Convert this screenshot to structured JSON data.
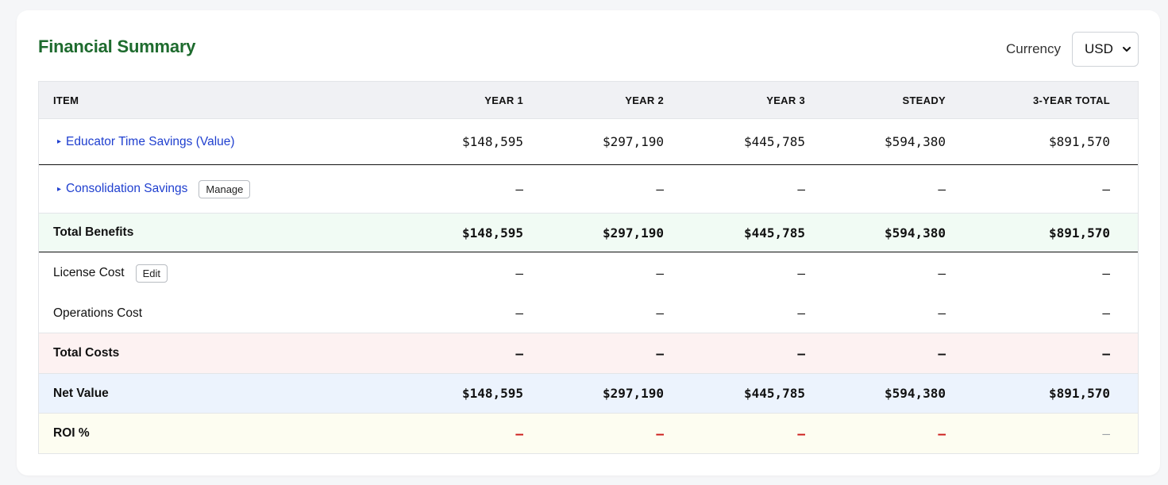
{
  "header": {
    "title": "Financial Summary",
    "currency_label": "Currency",
    "currency_value": "USD",
    "chevron_icon": "chevron-down-icon"
  },
  "table": {
    "columns": [
      "ITEM",
      "YEAR 1",
      "YEAR 2",
      "YEAR 3",
      "STEADY",
      "3-YEAR TOTAL"
    ],
    "rows": [
      {
        "label": "Educator Time Savings (Value)",
        "toggle": "▸",
        "values": [
          "$148,595",
          "$297,190",
          "$445,785",
          "$594,380",
          "$891,570"
        ]
      },
      {
        "label": "Consolidation Savings",
        "toggle": "▸",
        "button": "Manage",
        "values": [
          "–",
          "–",
          "–",
          "–",
          "–"
        ]
      },
      {
        "label": "Total Benefits",
        "values": [
          "$148,595",
          "$297,190",
          "$445,785",
          "$594,380",
          "$891,570"
        ]
      },
      {
        "label": "License Cost",
        "button": "Edit",
        "values": [
          "–",
          "–",
          "–",
          "–",
          "–"
        ]
      },
      {
        "label": "Operations Cost",
        "values": [
          "–",
          "–",
          "–",
          "–",
          "–"
        ]
      },
      {
        "label": "Total Costs",
        "values": [
          "–",
          "–",
          "–",
          "–",
          "–"
        ]
      },
      {
        "label": "Net Value",
        "values": [
          "$148,595",
          "$297,190",
          "$445,785",
          "$594,380",
          "$891,570"
        ]
      },
      {
        "label": "ROI %",
        "values": [
          "–",
          "–",
          "–",
          "–",
          "–"
        ]
      }
    ]
  },
  "colors": {
    "title": "#1e6b2e",
    "link": "#1f3fcf",
    "benefits_bg": "#f1fbf4",
    "costs_bg": "#fdf2f2",
    "net_bg": "#ecf3fd",
    "roi_bg": "#fdfdf1",
    "roi_negative": "#cc1a1a"
  }
}
